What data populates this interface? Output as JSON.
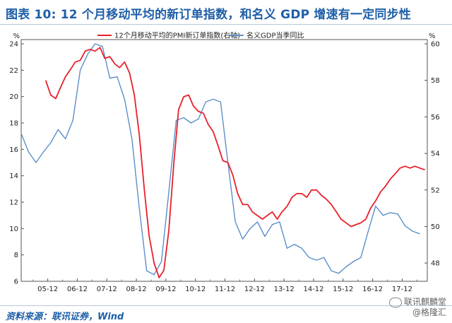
{
  "title": "图表 10: 12 个月移动平均的新订单指数，和名义 GDP 增速有一定同步性",
  "source": "资料来源：联讯证券，Wind",
  "watermark": {
    "line1": "联讯麒麟堂",
    "line2": "@格隆汇"
  },
  "colors": {
    "series1": "#e8202a",
    "series2": "#5b8fc7",
    "title": "#1f5fa8"
  },
  "chart_data": {
    "type": "line",
    "left_axis": {
      "unit": "%",
      "range": [
        6,
        24
      ],
      "ticks": [
        "6",
        "8",
        "10",
        "12",
        "14",
        "16",
        "18",
        "20",
        "22",
        "24"
      ]
    },
    "right_axis": {
      "unit": "%",
      "range": [
        47,
        60
      ],
      "ticks": [
        "48",
        "50",
        "52",
        "54",
        "56",
        "58",
        "60"
      ]
    },
    "x_ticks": [
      "05-12",
      "06-12",
      "07-12",
      "08-12",
      "09-12",
      "10-12",
      "11-12",
      "12-12",
      "13-12",
      "14-12",
      "15-12",
      "16-12",
      "17-12"
    ],
    "x_range": [
      2005.0,
      2018.75
    ],
    "legend_placement": "top",
    "series": [
      {
        "name": "12个月移动平均的PMI新订单指数(右轴)",
        "axis": "right",
        "points": [
          [
            2005.83,
            58.0
          ],
          [
            2006.0,
            57.2
          ],
          [
            2006.17,
            57.0
          ],
          [
            2006.33,
            57.6
          ],
          [
            2006.5,
            58.2
          ],
          [
            2006.67,
            58.6
          ],
          [
            2006.83,
            59.0
          ],
          [
            2007.0,
            59.1
          ],
          [
            2007.17,
            59.6
          ],
          [
            2007.33,
            59.7
          ],
          [
            2007.5,
            59.6
          ],
          [
            2007.67,
            59.8
          ],
          [
            2007.83,
            59.2
          ],
          [
            2008.0,
            59.3
          ],
          [
            2008.17,
            58.9
          ],
          [
            2008.33,
            58.7
          ],
          [
            2008.5,
            59.0
          ],
          [
            2008.67,
            58.4
          ],
          [
            2008.83,
            57.2
          ],
          [
            2009.0,
            55.0
          ],
          [
            2009.17,
            52.0
          ],
          [
            2009.33,
            49.5
          ],
          [
            2009.5,
            48.0
          ],
          [
            2009.67,
            47.2
          ],
          [
            2009.83,
            47.6
          ],
          [
            2010.0,
            49.8
          ],
          [
            2010.17,
            53.5
          ],
          [
            2010.33,
            56.4
          ],
          [
            2010.5,
            57.1
          ],
          [
            2010.67,
            57.2
          ],
          [
            2010.83,
            56.6
          ],
          [
            2011.0,
            56.3
          ],
          [
            2011.17,
            56.2
          ],
          [
            2011.33,
            55.6
          ],
          [
            2011.5,
            55.2
          ],
          [
            2011.67,
            54.4
          ],
          [
            2011.83,
            53.6
          ],
          [
            2012.0,
            53.5
          ],
          [
            2012.17,
            52.8
          ],
          [
            2012.33,
            51.8
          ],
          [
            2012.5,
            51.2
          ],
          [
            2012.67,
            51.2
          ],
          [
            2012.83,
            50.8
          ],
          [
            2013.0,
            50.6
          ],
          [
            2013.17,
            50.4
          ],
          [
            2013.33,
            50.6
          ],
          [
            2013.5,
            50.8
          ],
          [
            2013.67,
            50.4
          ],
          [
            2013.83,
            50.8
          ],
          [
            2014.0,
            51.1
          ],
          [
            2014.17,
            51.6
          ],
          [
            2014.33,
            51.8
          ],
          [
            2014.5,
            51.8
          ],
          [
            2014.67,
            51.6
          ],
          [
            2014.83,
            52.0
          ],
          [
            2015.0,
            52.0
          ],
          [
            2015.17,
            51.7
          ],
          [
            2015.33,
            51.5
          ],
          [
            2015.5,
            51.2
          ],
          [
            2015.67,
            50.8
          ],
          [
            2015.83,
            50.4
          ],
          [
            2016.0,
            50.2
          ],
          [
            2016.17,
            50.0
          ],
          [
            2016.33,
            50.1
          ],
          [
            2016.5,
            50.2
          ],
          [
            2016.67,
            50.4
          ],
          [
            2016.83,
            51.0
          ],
          [
            2017.0,
            51.4
          ],
          [
            2017.17,
            51.9
          ],
          [
            2017.33,
            52.2
          ],
          [
            2017.5,
            52.6
          ],
          [
            2017.67,
            52.9
          ],
          [
            2017.83,
            53.2
          ],
          [
            2018.0,
            53.3
          ],
          [
            2018.17,
            53.2
          ],
          [
            2018.33,
            53.3
          ],
          [
            2018.5,
            53.2
          ],
          [
            2018.67,
            53.1
          ]
        ]
      },
      {
        "name": "名义GDP当季同比",
        "axis": "left",
        "points": [
          [
            2005.0,
            17.2
          ],
          [
            2005.25,
            15.8
          ],
          [
            2005.5,
            15.0
          ],
          [
            2005.75,
            15.8
          ],
          [
            2006.0,
            16.5
          ],
          [
            2006.25,
            17.5
          ],
          [
            2006.5,
            16.8
          ],
          [
            2006.75,
            18.2
          ],
          [
            2007.0,
            22.0
          ],
          [
            2007.25,
            23.2
          ],
          [
            2007.5,
            24.0
          ],
          [
            2007.75,
            23.8
          ],
          [
            2008.0,
            21.4
          ],
          [
            2008.25,
            21.5
          ],
          [
            2008.5,
            19.8
          ],
          [
            2008.75,
            16.8
          ],
          [
            2009.0,
            11.5
          ],
          [
            2009.25,
            6.8
          ],
          [
            2009.5,
            6.5
          ],
          [
            2009.75,
            7.5
          ],
          [
            2010.0,
            12.8
          ],
          [
            2010.25,
            18.2
          ],
          [
            2010.5,
            18.4
          ],
          [
            2010.75,
            18.0
          ],
          [
            2011.0,
            18.3
          ],
          [
            2011.25,
            19.6
          ],
          [
            2011.5,
            19.8
          ],
          [
            2011.75,
            19.6
          ],
          [
            2012.0,
            15.0
          ],
          [
            2012.25,
            10.5
          ],
          [
            2012.5,
            9.2
          ],
          [
            2012.75,
            10.0
          ],
          [
            2013.0,
            10.5
          ],
          [
            2013.25,
            9.4
          ],
          [
            2013.5,
            10.3
          ],
          [
            2013.75,
            10.5
          ],
          [
            2014.0,
            8.5
          ],
          [
            2014.25,
            8.8
          ],
          [
            2014.5,
            8.5
          ],
          [
            2014.75,
            7.8
          ],
          [
            2015.0,
            7.6
          ],
          [
            2015.25,
            7.8
          ],
          [
            2015.5,
            6.8
          ],
          [
            2015.75,
            6.6
          ],
          [
            2016.0,
            7.1
          ],
          [
            2016.25,
            7.5
          ],
          [
            2016.5,
            7.8
          ],
          [
            2016.75,
            9.8
          ],
          [
            2017.0,
            11.7
          ],
          [
            2017.25,
            11.0
          ],
          [
            2017.5,
            11.2
          ],
          [
            2017.75,
            11.1
          ],
          [
            2018.0,
            10.2
          ],
          [
            2018.25,
            9.8
          ],
          [
            2018.5,
            9.6
          ]
        ]
      }
    ]
  }
}
